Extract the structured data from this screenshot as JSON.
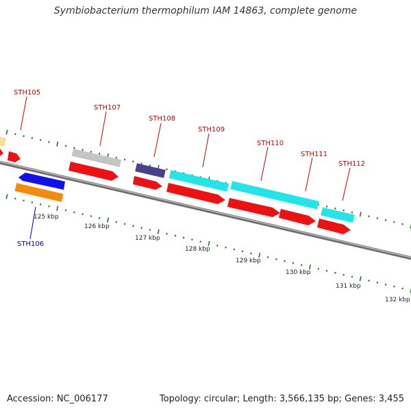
{
  "title": "Symbiobacterium thermophilum IAM 14863, complete genome",
  "footer": {
    "accession": "Accession: NC_006177",
    "stats": "Topology: circular; Length: 3,566,135 bp; Genes: 3,455"
  },
  "colors": {
    "backbone": "#7a7a7a",
    "tick": "#1a7a1a",
    "label_forward": "#cc0000",
    "label_reverse": "#0000aa"
  },
  "scale_labels": [
    "125 kbp",
    "126 kbp",
    "127 kbp",
    "128 kbp",
    "129 kbp",
    "130 kbp",
    "131 kbp",
    "132 kbp"
  ],
  "gene_labels": [
    {
      "text": "STH105",
      "strand": "forward"
    },
    {
      "text": "STH107",
      "strand": "forward"
    },
    {
      "text": "STH108",
      "strand": "forward"
    },
    {
      "text": "STH109",
      "strand": "forward"
    },
    {
      "text": "STH110",
      "strand": "forward"
    },
    {
      "text": "STH111",
      "strand": "forward"
    },
    {
      "text": "STH112",
      "strand": "forward"
    },
    {
      "text": "STH106",
      "strand": "reverse"
    }
  ]
}
